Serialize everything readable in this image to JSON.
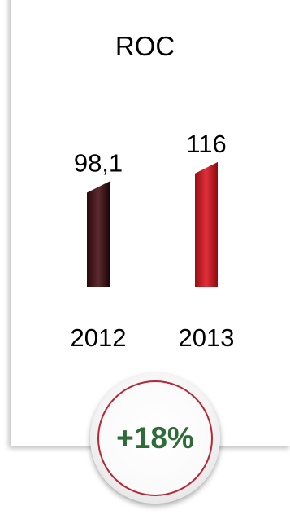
{
  "chart_data": {
    "type": "bar",
    "title": "ROC",
    "categories": [
      "2012",
      "2013"
    ],
    "values": [
      98.1,
      116
    ],
    "value_labels": [
      "98,1",
      "116"
    ],
    "colors": [
      "#4a1a1e",
      "#c5161f"
    ],
    "xlabel": "",
    "ylabel": "",
    "grid": false,
    "legend": "none"
  },
  "badge": {
    "label": "+18%",
    "text_color": "#2f6b36",
    "ring_color": "#b5283a"
  }
}
